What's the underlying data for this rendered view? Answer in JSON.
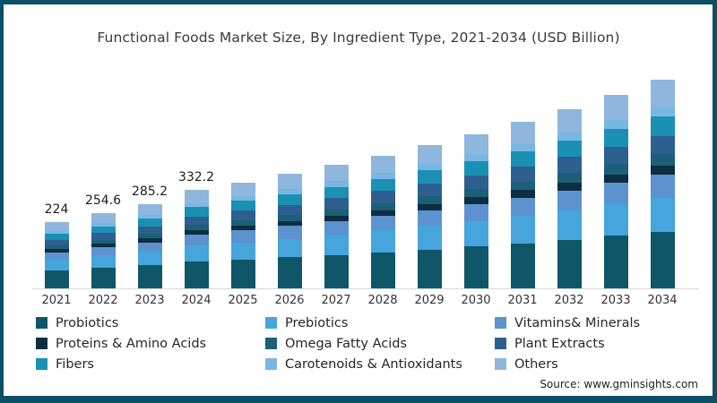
{
  "title": "Functional Foods Market Size, By Ingredient Type, 2021-2034 (USD Billion)",
  "source": "Source: www.gminsights.com",
  "frame": {
    "border_color": "#0d4f66",
    "background": "#ffffff"
  },
  "chart_data": {
    "type": "bar",
    "stacked": true,
    "title": "Functional Foods Market Size, By Ingredient Type, 2021-2034 (USD Billion)",
    "xlabel": "",
    "ylabel": "USD Billion",
    "grid": false,
    "legend_position": "bottom",
    "axis_line_color": "#d9d9d9",
    "ylim": [
      0,
      750
    ],
    "categories": [
      "2021",
      "2022",
      "2023",
      "2024",
      "2025",
      "2026",
      "2027",
      "2028",
      "2029",
      "2030",
      "2031",
      "2032",
      "2033",
      "2034"
    ],
    "bar_labels": [
      "224",
      "254.6",
      "285.2",
      "332.2",
      "",
      "",
      "",
      "",
      "",
      "",
      "",
      "",
      "",
      ""
    ],
    "totals": [
      224,
      254.6,
      285.2,
      332.2,
      358.1,
      386.0,
      416.1,
      448.6,
      483.6,
      521.3,
      562.0,
      605.8,
      653.1,
      704.0
    ],
    "series": [
      {
        "name": "Probiotics",
        "color": "#0f5669",
        "values": [
          60.7,
          69.0,
          77.3,
          90.0,
          97.0,
          104.6,
          112.8,
          121.6,
          131.1,
          141.3,
          152.3,
          164.2,
          177.0,
          190.8
        ]
      },
      {
        "name": "Prebiotics",
        "color": "#45a5dc",
        "values": [
          36.7,
          41.8,
          46.8,
          54.5,
          58.7,
          63.3,
          68.2,
          73.6,
          79.3,
          85.5,
          92.2,
          99.4,
          107.1,
          115.5
        ]
      },
      {
        "name": "Vitamins& Minerals",
        "color": "#5b92cf",
        "values": [
          24.9,
          28.3,
          31.7,
          36.9,
          39.7,
          42.8,
          46.2,
          49.8,
          53.7,
          57.9,
          62.4,
          67.2,
          72.5,
          78.1
        ]
      },
      {
        "name": "Proteins & Amino Acids",
        "color": "#0d2e41",
        "values": [
          9.9,
          11.2,
          12.5,
          14.6,
          15.8,
          17.0,
          18.3,
          19.7,
          21.3,
          22.9,
          24.7,
          26.7,
          28.7,
          31.0
        ]
      },
      {
        "name": "Omega Fatty Acids",
        "color": "#1b6078",
        "values": [
          11.9,
          13.5,
          15.1,
          17.6,
          19.0,
          20.5,
          22.1,
          23.8,
          25.6,
          27.6,
          29.8,
          32.1,
          34.6,
          37.3
        ]
      },
      {
        "name": "Plant Extracts",
        "color": "#2d608f",
        "values": [
          19.9,
          22.7,
          25.4,
          29.6,
          31.9,
          34.4,
          37.0,
          39.9,
          43.0,
          46.4,
          50.0,
          53.9,
          58.1,
          62.7
        ]
      },
      {
        "name": "Fibers",
        "color": "#1a91b4",
        "values": [
          20.8,
          23.7,
          26.5,
          30.9,
          33.3,
          35.9,
          38.7,
          41.7,
          45.0,
          48.5,
          52.3,
          56.3,
          60.7,
          65.5
        ]
      },
      {
        "name": "Carotenoids & Antioxidants",
        "color": "#79b7e3",
        "values": [
          9.9,
          11.2,
          12.5,
          14.6,
          15.8,
          17.0,
          18.3,
          19.7,
          21.3,
          22.9,
          24.7,
          26.7,
          28.7,
          31.0
        ]
      },
      {
        "name": "Others",
        "color": "#8fb6dc",
        "values": [
          29.3,
          33.4,
          37.4,
          43.5,
          46.9,
          50.6,
          54.5,
          58.8,
          63.4,
          68.3,
          73.6,
          79.4,
          85.6,
          92.2
        ]
      }
    ]
  }
}
